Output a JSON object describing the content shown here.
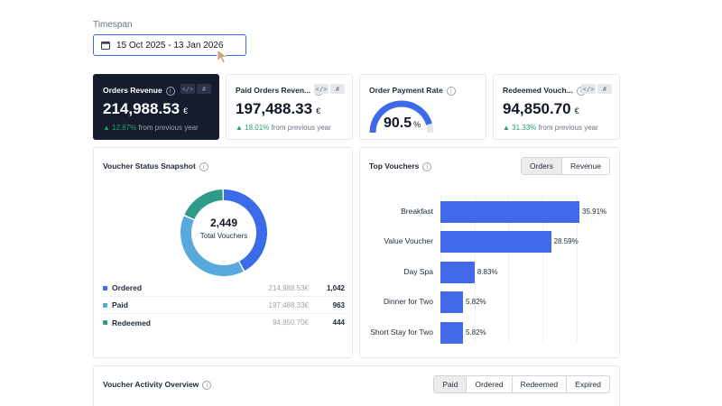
{
  "timespan": {
    "label": "Timespan",
    "value": "15 Oct 2025 - 13 Jan 2026"
  },
  "kpis": [
    {
      "title": "Orders Revenue",
      "value": "214,988.53",
      "currency": "€",
      "change": "12.87%",
      "change_text": "from previous year"
    },
    {
      "title": "Paid Orders Reven...",
      "value": "197,488.33",
      "currency": "€",
      "change": "18.01%",
      "change_text": "from previous year"
    },
    {
      "title": "Order Payment Rate",
      "value": "90.5",
      "unit": "%",
      "progress": 0.905
    },
    {
      "title": "Redeemed Vouch...",
      "value": "94,850.70",
      "currency": "€",
      "change": "31.33%",
      "change_text": "from previous year"
    }
  ],
  "badge_hash": "#",
  "status_snapshot": {
    "title": "Voucher Status Snapshot",
    "total": "2,449",
    "total_label": "Total Vouchers",
    "rows": [
      {
        "label": "Ordered",
        "amount": "214,988.53€",
        "count": "1,042",
        "color": "#3b6be8"
      },
      {
        "label": "Paid",
        "amount": "197,488.33€",
        "count": "963",
        "color": "#5aa9dc"
      },
      {
        "label": "Redeemed",
        "amount": "94,850.70€",
        "count": "444",
        "color": "#2e9b8a"
      }
    ]
  },
  "top_vouchers": {
    "title": "Top Vouchers",
    "toggle": [
      "Orders",
      "Revenue"
    ],
    "active": "Orders"
  },
  "chart_data": {
    "type": "bar",
    "orientation": "horizontal",
    "categories": [
      "Breakfast",
      "Value Voucher",
      "Day Spa",
      "Dinner for Two",
      "Short Stay for Two"
    ],
    "values": [
      35.91,
      28.59,
      8.83,
      5.82,
      5.82
    ],
    "value_labels": [
      "35.91%",
      "28.59%",
      "8.83%",
      "5.82%",
      "5.82%"
    ],
    "color": "#4169e8"
  },
  "activity": {
    "title": "Voucher Activity Overview",
    "tabs": [
      "Paid",
      "Ordered",
      "Redeemed",
      "Expired"
    ],
    "active": "Paid"
  }
}
